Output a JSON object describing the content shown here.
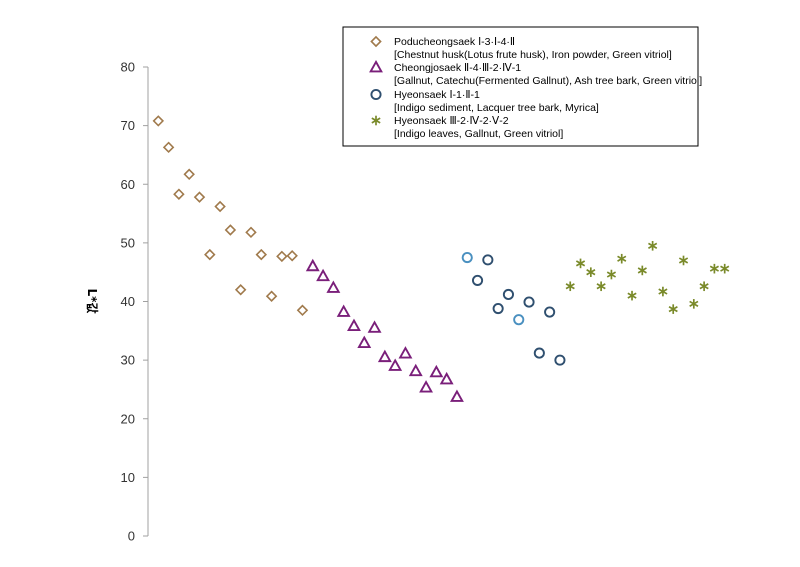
{
  "chart_data": {
    "type": "scatter",
    "title": "",
    "xlabel": "",
    "ylabel": "L*값",
    "ylim": [
      0,
      80
    ],
    "y_ticks": [
      "0",
      "10",
      "20",
      "30",
      "40",
      "50",
      "60",
      "70",
      "80"
    ],
    "xlim": [
      0,
      57
    ],
    "grid": false,
    "legend_position": "top-right",
    "series": [
      {
        "name": "Poducheongsaek Ⅰ-3·Ⅰ-4·Ⅱ",
        "description": "[Chestnut husk(Lotus frute husk), Iron powder, Green vitriol]",
        "marker": "diamond",
        "color": "#a07a4c",
        "x": [
          1,
          2,
          3,
          4,
          5,
          6,
          7,
          8,
          9,
          10,
          11,
          12,
          13,
          14,
          15
        ],
        "y": [
          70.8,
          66.3,
          58.3,
          61.7,
          57.8,
          48,
          56.2,
          52.2,
          42,
          51.8,
          48,
          40.9,
          47.7,
          47.8,
          38.5
        ]
      },
      {
        "name": "Cheongjosaek Ⅱ-4·Ⅲ-2·Ⅳ-1",
        "description": "[Gallnut, Catechu(Fermented Gallnut), Ash tree bark, Green vitriol]",
        "marker": "triangle",
        "color": "#7a1f7a",
        "x": [
          16,
          17,
          18,
          19,
          20,
          21,
          22,
          23,
          24,
          25,
          26,
          27,
          28,
          29,
          30
        ],
        "y": [
          46,
          44.3,
          42.3,
          38.2,
          35.8,
          32.9,
          35.5,
          30.5,
          29,
          31.1,
          28.1,
          25.3,
          27.9,
          26.7,
          23.7
        ]
      },
      {
        "name": "Hyeonsaek Ⅰ-1·Ⅱ-1",
        "description": "[Indigo sediment, Lacquer tree bark, Myrica]",
        "marker": "circle",
        "color": "#2f4f6f",
        "color_alt": "#4a90c0",
        "x": [
          31,
          32,
          33,
          34,
          35,
          36,
          37,
          38,
          39,
          40
        ],
        "y": [
          47.5,
          43.6,
          47.1,
          38.8,
          41.2,
          36.9,
          39.9,
          31.2,
          38.2,
          30
        ],
        "alt_color_points": [
          0,
          5
        ]
      },
      {
        "name": "Hyeonsaek Ⅲ-2·Ⅳ-2·Ⅴ-2",
        "description": "[Indigo leaves, Gallnut, Green vitriol]",
        "marker": "asterisk",
        "color": "#7a8a2a",
        "x": [
          41,
          42,
          43,
          44,
          45,
          46,
          47,
          48,
          49,
          50,
          51,
          52,
          53,
          54,
          55,
          56
        ],
        "y": [
          42.6,
          46.5,
          45,
          42.6,
          44.6,
          47.3,
          41,
          45.3,
          49.5,
          41.7,
          38.7,
          47,
          39.6,
          42.6,
          45.6,
          45.6
        ]
      }
    ]
  }
}
